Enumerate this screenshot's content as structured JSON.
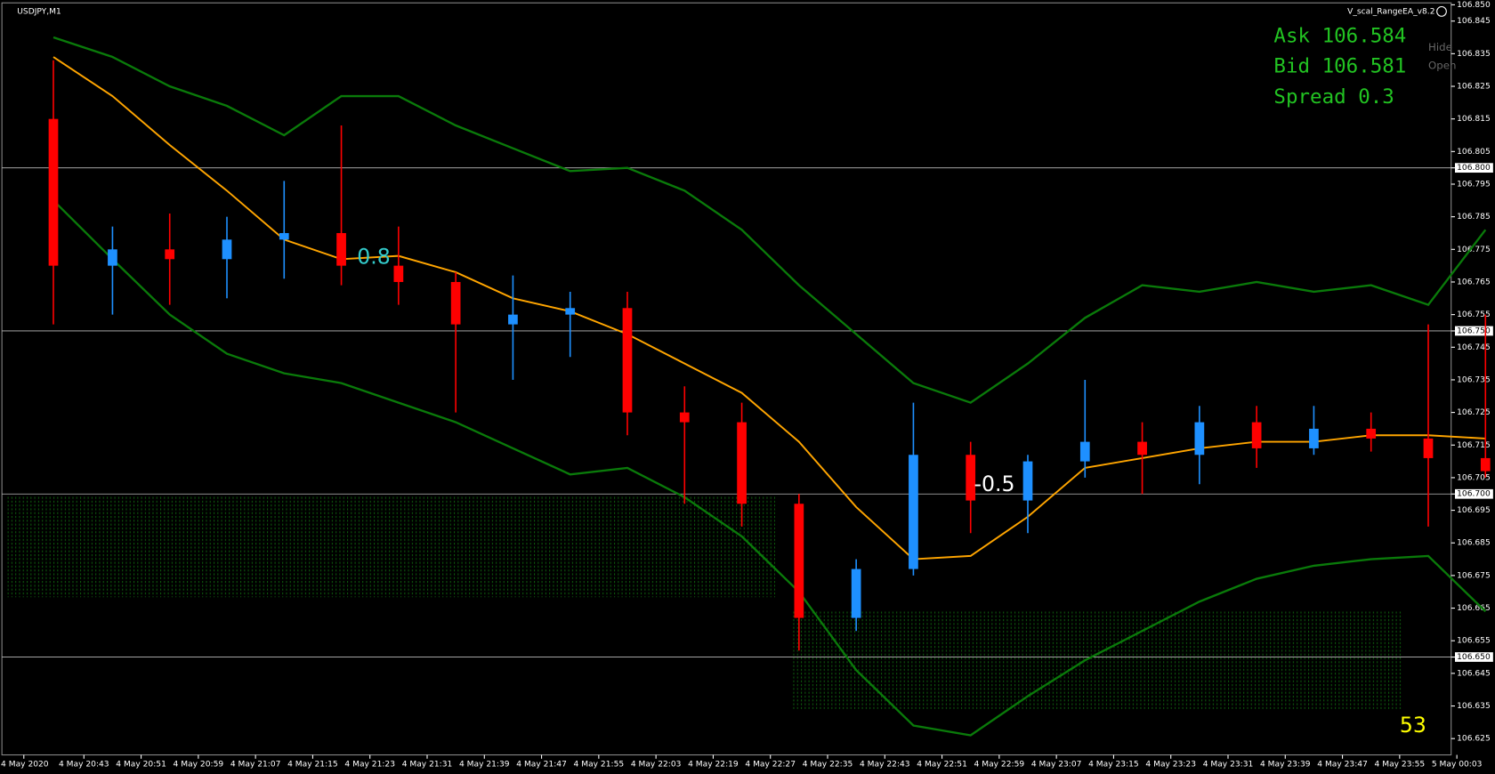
{
  "chart_data": {
    "type": "candlestick",
    "title": "USDJPY,M1",
    "ea_name": "V_scal_RangeEA_v8.2",
    "quote": {
      "ask": "Ask 106.584",
      "bid": "Bid 106.581",
      "spread": "Spread 0.3"
    },
    "buttons": [
      "Hide",
      "Open"
    ],
    "annotations": [
      "0.8",
      "-0.5",
      "53"
    ],
    "categories": [
      "4 May 2020",
      "4 May 20:43",
      "4 May 20:51",
      "4 May 20:59",
      "4 May 21:07",
      "4 May 21:15",
      "4 May 21:23",
      "4 May 21:31",
      "4 May 21:39",
      "4 May 21:47",
      "4 May 21:55",
      "4 May 22:03",
      "4 May 22:19",
      "4 May 22:27",
      "4 May 22:35",
      "4 May 22:43",
      "4 May 22:51",
      "4 May 22:59",
      "4 May 23:07",
      "4 May 23:15",
      "4 May 23:23",
      "4 May 23:31",
      "4 May 23:39",
      "4 May 23:47",
      "4 May 23:55",
      "5 May 00:03"
    ],
    "open": [
      106.815,
      106.77,
      106.775,
      106.772,
      106.778,
      106.78,
      106.77,
      106.765,
      106.752,
      106.755,
      106.757,
      106.725,
      106.722,
      106.697,
      106.662,
      106.677,
      106.712,
      106.698,
      106.71,
      106.716,
      106.712,
      106.722,
      106.714,
      106.72,
      106.717,
      106.711
    ],
    "high": [
      106.833,
      106.782,
      106.786,
      106.785,
      106.796,
      106.813,
      106.782,
      106.768,
      106.767,
      106.762,
      106.762,
      106.733,
      106.728,
      106.7,
      106.68,
      106.728,
      106.716,
      106.712,
      106.735,
      106.722,
      106.727,
      106.727,
      106.727,
      106.725,
      106.752,
      106.755
    ],
    "low": [
      106.752,
      106.755,
      106.758,
      106.76,
      106.766,
      106.764,
      106.758,
      106.725,
      106.735,
      106.742,
      106.718,
      106.697,
      106.69,
      106.652,
      106.658,
      106.675,
      106.688,
      106.688,
      106.705,
      106.7,
      106.703,
      106.708,
      106.712,
      106.713,
      106.69,
      106.705
    ],
    "close": [
      106.77,
      106.775,
      106.772,
      106.778,
      106.78,
      106.77,
      106.765,
      106.752,
      106.755,
      106.757,
      106.725,
      106.722,
      106.697,
      106.662,
      106.677,
      106.712,
      106.698,
      106.71,
      106.716,
      106.712,
      106.722,
      106.714,
      106.72,
      106.717,
      106.711,
      106.707
    ],
    "up_color": "#1e90ff",
    "down_color": "#ff0000",
    "series": [
      {
        "color": "#ffa500",
        "values": [
          106.834,
          106.822,
          106.807,
          106.793,
          106.778,
          106.772,
          106.773,
          106.768,
          106.76,
          106.756,
          106.749,
          106.74,
          106.731,
          106.716,
          106.696,
          106.68,
          106.681,
          106.693,
          106.708,
          106.711,
          106.714,
          106.716,
          106.716,
          106.718,
          106.718,
          106.717
        ]
      },
      {
        "color": "#0a7a0a",
        "values": [
          106.84,
          106.834,
          106.825,
          106.819,
          106.81,
          106.822,
          106.822,
          106.813,
          106.806,
          106.799,
          106.8,
          106.793,
          106.781,
          106.764,
          106.749,
          106.734,
          106.728,
          106.74,
          106.754,
          106.764,
          106.762,
          106.765,
          106.762,
          106.764,
          106.758,
          106.781
        ]
      },
      {
        "color": "#0a7a0a",
        "values": [
          106.79,
          106.772,
          106.755,
          106.743,
          106.737,
          106.734,
          106.728,
          106.722,
          106.714,
          106.706,
          106.708,
          106.699,
          106.687,
          106.67,
          106.646,
          106.629,
          106.626,
          106.638,
          106.649,
          106.658,
          106.667,
          106.674,
          106.678,
          106.68,
          106.681,
          106.664
        ]
      }
    ],
    "ylim": [
      106.62,
      106.85
    ],
    "yticks": [
      {
        "value": 106.85,
        "label": "106.850"
      },
      106.845,
      106.835,
      106.825,
      106.815,
      106.805,
      {
        "value": 106.8,
        "label": "106.800"
      },
      106.795,
      106.785,
      106.775,
      106.765,
      106.755,
      {
        "value": 106.75,
        "label": "106.750"
      },
      106.745,
      106.735,
      106.725,
      106.715,
      106.705,
      {
        "value": 106.7,
        "label": "106.700"
      },
      106.695,
      106.685,
      106.675,
      106.665,
      106.655,
      {
        "value": 106.65,
        "label": "106.650"
      },
      106.645,
      106.635,
      106.625
    ],
    "hlines": [
      106.8,
      106.75,
      106.7,
      106.65
    ]
  }
}
